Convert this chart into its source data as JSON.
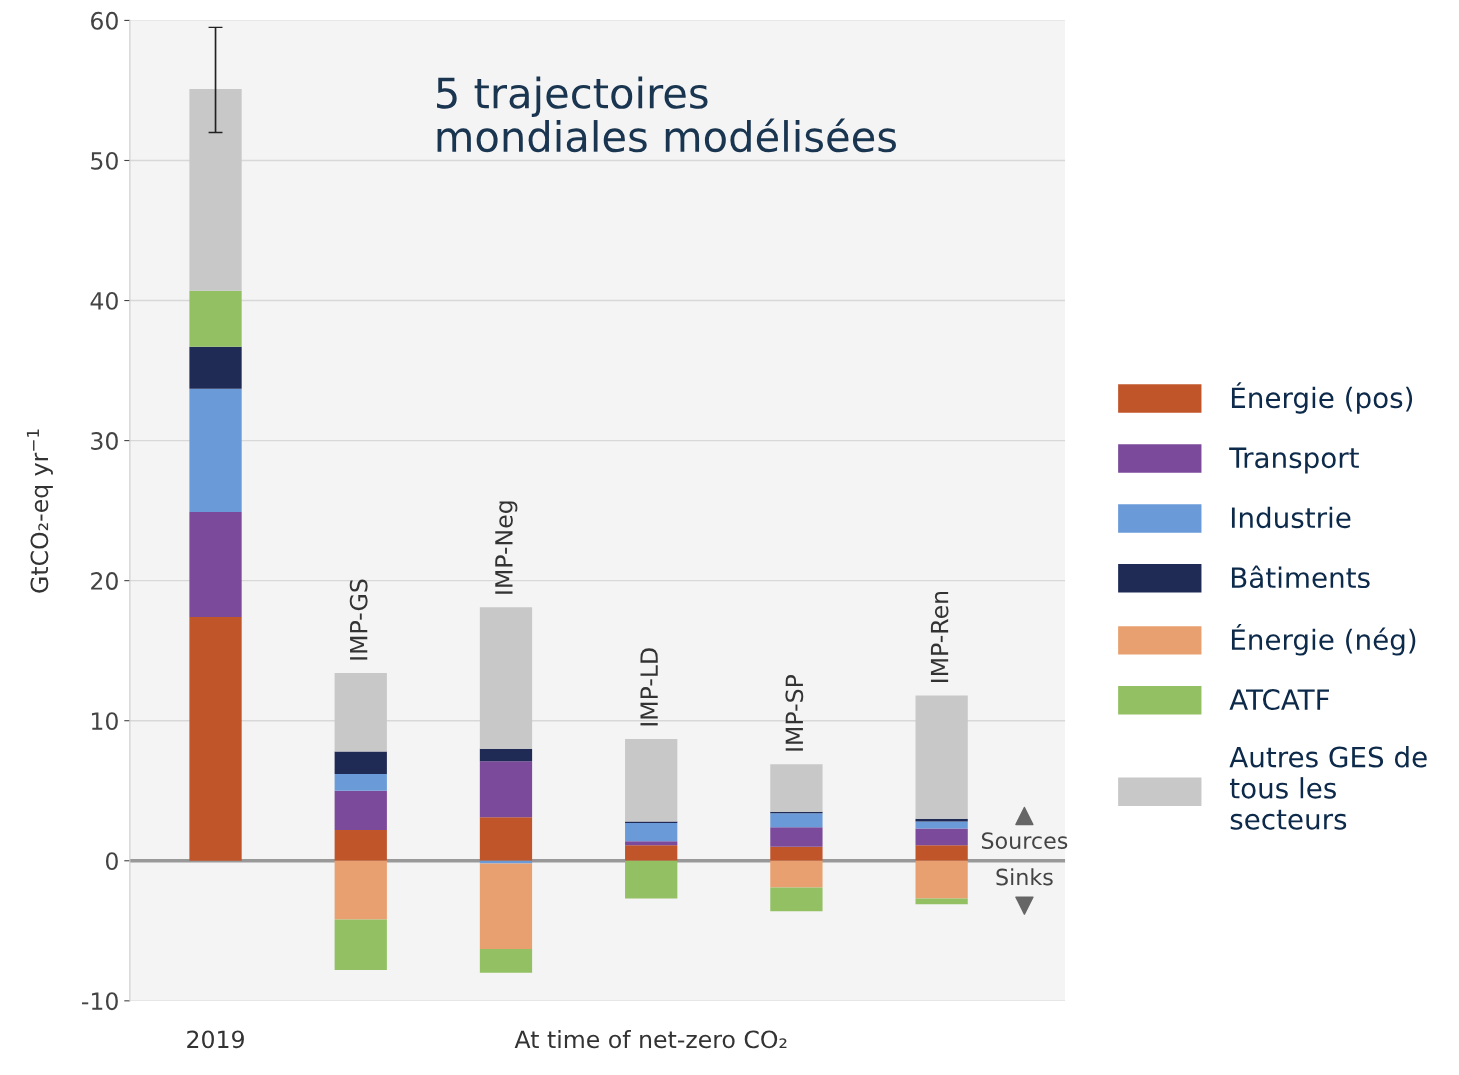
{
  "chart_data": {
    "type": "bar",
    "stacked": true,
    "title": "5 trajectoires\nmondiales modélisées",
    "xlabel": "At time of net-zero CO₂",
    "ylabel": "GtCO₂-eq yr$^{−1}$",
    "categories": [
      "2019",
      "IMP-GS",
      "IMP-Neg",
      "IMP-LD",
      "IMP-SP",
      "IMP-Ren"
    ],
    "series": [
      {
        "name": "Énergie (pos)",
        "color": "#c0552a",
        "values": [
          17.4,
          2.2,
          3.1,
          1.1,
          1.0,
          1.1
        ]
      },
      {
        "name": "Transport",
        "color": "#7b4a9a",
        "values": [
          7.5,
          2.8,
          4.0,
          0.3,
          1.4,
          1.2
        ]
      },
      {
        "name": "Industrie",
        "color": "#6a9ad8",
        "values": [
          8.8,
          1.2,
          -0.2,
          1.3,
          1.0,
          0.5
        ]
      },
      {
        "name": "Bâtiments",
        "color": "#1f2a55",
        "values": [
          3.0,
          1.6,
          0.9,
          0.1,
          0.1,
          0.2
        ]
      },
      {
        "name": "Énergie (nég)",
        "color": "#e9a070",
        "values": [
          0,
          -4.2,
          -6.1,
          0,
          -1.9,
          -2.7
        ]
      },
      {
        "name": "ATCATF",
        "color": "#94c064",
        "values": [
          4.0,
          -3.6,
          -1.7,
          -2.7,
          -1.7,
          -0.4
        ]
      },
      {
        "name": "Autres GES de\ntous les\nsecteurs",
        "color": "#c8c8c8",
        "values": [
          14.4,
          5.6,
          10.1,
          5.9,
          3.4,
          8.8
        ],
        "errors": [
          [
            52.0,
            59.5
          ],
          null,
          null,
          null,
          null,
          null
        ]
      }
    ],
    "ylim": [
      -10,
      60
    ],
    "yticks": [
      -10,
      0,
      10,
      20,
      30,
      40,
      50,
      60
    ],
    "grid": "y",
    "legend": "right",
    "annotations": [
      "Sources",
      "Sinks"
    ]
  }
}
